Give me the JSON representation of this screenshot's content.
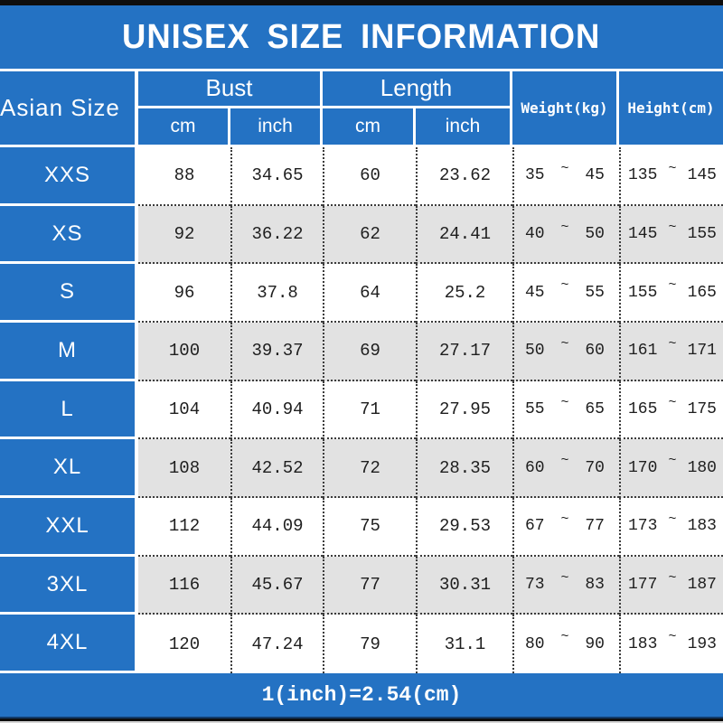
{
  "title": "UNISEX SIZE INFORMATION",
  "header": {
    "size_col": "Asian Size",
    "bust": "Bust",
    "length": "Length",
    "weight": "Weight(kg)",
    "height": "Height(cm)",
    "bust_cm": "cm",
    "bust_inch": "inch",
    "length_cm": "cm",
    "length_inch": "inch"
  },
  "tilde": "~",
  "rows": [
    {
      "size": "XXS",
      "bust_cm": "88",
      "bust_inch": "34.65",
      "length_cm": "60",
      "length_inch": "23.62",
      "weight_min": "35",
      "weight_max": "45",
      "height_min": "135",
      "height_max": "145"
    },
    {
      "size": "XS",
      "bust_cm": "92",
      "bust_inch": "36.22",
      "length_cm": "62",
      "length_inch": "24.41",
      "weight_min": "40",
      "weight_max": "50",
      "height_min": "145",
      "height_max": "155"
    },
    {
      "size": "S",
      "bust_cm": "96",
      "bust_inch": "37.8",
      "length_cm": "64",
      "length_inch": "25.2",
      "weight_min": "45",
      "weight_max": "55",
      "height_min": "155",
      "height_max": "165"
    },
    {
      "size": "M",
      "bust_cm": "100",
      "bust_inch": "39.37",
      "length_cm": "69",
      "length_inch": "27.17",
      "weight_min": "50",
      "weight_max": "60",
      "height_min": "161",
      "height_max": "171"
    },
    {
      "size": "L",
      "bust_cm": "104",
      "bust_inch": "40.94",
      "length_cm": "71",
      "length_inch": "27.95",
      "weight_min": "55",
      "weight_max": "65",
      "height_min": "165",
      "height_max": "175"
    },
    {
      "size": "XL",
      "bust_cm": "108",
      "bust_inch": "42.52",
      "length_cm": "72",
      "length_inch": "28.35",
      "weight_min": "60",
      "weight_max": "70",
      "height_min": "170",
      "height_max": "180"
    },
    {
      "size": "XXL",
      "bust_cm": "112",
      "bust_inch": "44.09",
      "length_cm": "75",
      "length_inch": "29.53",
      "weight_min": "67",
      "weight_max": "77",
      "height_min": "173",
      "height_max": "183"
    },
    {
      "size": "3XL",
      "bust_cm": "116",
      "bust_inch": "45.67",
      "length_cm": "77",
      "length_inch": "30.31",
      "weight_min": "73",
      "weight_max": "83",
      "height_min": "177",
      "height_max": "187"
    },
    {
      "size": "4XL",
      "bust_cm": "120",
      "bust_inch": "47.24",
      "length_cm": "79",
      "length_inch": "31.1",
      "weight_min": "80",
      "weight_max": "90",
      "height_min": "183",
      "height_max": "193"
    }
  ],
  "footer": "1(inch)=2.54(cm)",
  "colors": {
    "accent_blue": "#2472c3",
    "row_alt_gray": "#e2e2e2",
    "dotted_line": "#3b3b3b",
    "border_black": "#0e0e0e",
    "bottom_navy": "#123c6b",
    "bottom_gray": "#d6d6d6",
    "text_dark": "#1e1e1e",
    "text_white": "#ffffff"
  }
}
